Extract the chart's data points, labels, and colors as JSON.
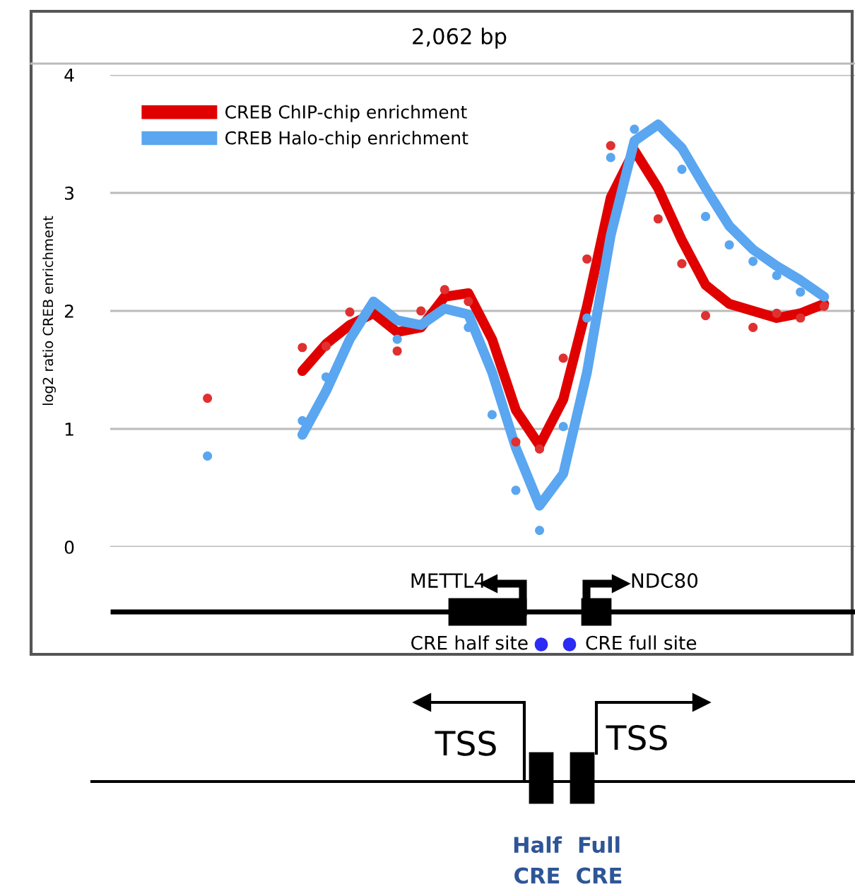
{
  "chart_data": {
    "type": "line",
    "title": "2,062 bp",
    "ylabel": "log2 ratio CREB enrichment",
    "categories": [
      null,
      null,
      null,
      null,
      null,
      null,
      null,
      null,
      null,
      null,
      null,
      null,
      null,
      null,
      null,
      null,
      null,
      null,
      null,
      null,
      null,
      null,
      null,
      null,
      null,
      null,
      null
    ],
    "series": [
      {
        "name": "CREB ChIP-chip enrichment",
        "color": "#e00000",
        "values": [
          null,
          null,
          null,
          null,
          1.49,
          1.72,
          1.88,
          1.98,
          1.82,
          1.86,
          2.12,
          2.15,
          1.76,
          1.16,
          0.86,
          1.25,
          2.04,
          2.96,
          3.36,
          3.04,
          2.6,
          2.22,
          2.06,
          2.0,
          1.94,
          1.98,
          2.06
        ]
      },
      {
        "name": "CREB Halo-chip enrichment",
        "color": "#5aa6f0",
        "values": [
          null,
          null,
          null,
          null,
          0.95,
          1.32,
          1.76,
          2.08,
          1.92,
          1.88,
          2.02,
          1.97,
          1.48,
          0.84,
          0.35,
          0.62,
          1.48,
          2.64,
          3.44,
          3.58,
          3.38,
          3.04,
          2.72,
          2.52,
          2.38,
          2.26,
          2.12
        ]
      },
      {
        "type": "scatter",
        "marker": "circle",
        "color": "#e03030",
        "values": [
          1.26,
          null,
          null,
          null,
          1.69,
          1.7,
          1.99,
          null,
          1.66,
          2.0,
          2.18,
          2.08,
          null,
          0.89,
          0.83,
          1.6,
          2.44,
          3.4,
          null,
          2.78,
          2.4,
          1.96,
          null,
          1.86,
          1.98,
          1.94,
          2.04
        ]
      },
      {
        "type": "scatter",
        "marker": "circle",
        "color": "#5aa6f0",
        "values": [
          0.77,
          null,
          null,
          null,
          1.07,
          1.44,
          null,
          null,
          1.76,
          null,
          null,
          1.86,
          1.12,
          0.48,
          0.14,
          1.02,
          1.94,
          3.3,
          3.54,
          null,
          3.2,
          2.8,
          2.56,
          2.42,
          2.3,
          2.16,
          null
        ]
      }
    ],
    "ylim": [
      0,
      4
    ],
    "yticks": [
      0,
      1,
      2,
      3,
      4
    ],
    "grid": "y",
    "legend": "top left",
    "tick_labels": "y",
    "marker": "none",
    "line_style": "solid",
    "annotations": [
      "METTL4",
      "NDC80",
      "CRE half site",
      "CRE full site",
      "TSS",
      "TSS",
      "Half\nCRE",
      "Full\nCRE"
    ]
  }
}
